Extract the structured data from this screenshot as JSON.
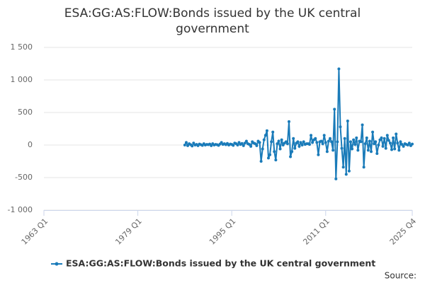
{
  "chart_data": {
    "type": "line",
    "title": "ESA:GG:AS:FLOW:Bonds issued by the UK central government",
    "source": "Source:",
    "x": [
      "1987 Q1",
      "1987 Q2",
      "1987 Q3",
      "1987 Q4",
      "1988 Q1",
      "1988 Q2",
      "1988 Q3",
      "1988 Q4",
      "1989 Q1",
      "1989 Q2",
      "1989 Q3",
      "1989 Q4",
      "1990 Q1",
      "1990 Q2",
      "1990 Q3",
      "1990 Q4",
      "1991 Q1",
      "1991 Q2",
      "1991 Q3",
      "1991 Q4",
      "1992 Q1",
      "1992 Q2",
      "1992 Q3",
      "1992 Q4",
      "1993 Q1",
      "1993 Q2",
      "1993 Q3",
      "1993 Q4",
      "1994 Q1",
      "1994 Q2",
      "1994 Q3",
      "1994 Q4",
      "1995 Q1",
      "1995 Q2",
      "1995 Q3",
      "1995 Q4",
      "1996 Q1",
      "1996 Q2",
      "1996 Q3",
      "1996 Q4",
      "1997 Q1",
      "1997 Q2",
      "1997 Q3",
      "1997 Q4",
      "1998 Q1",
      "1998 Q2",
      "1998 Q3",
      "1998 Q4",
      "1999 Q1",
      "1999 Q2",
      "1999 Q3",
      "1999 Q4",
      "2000 Q1",
      "2000 Q2",
      "2000 Q3",
      "2000 Q4",
      "2001 Q1",
      "2001 Q2",
      "2001 Q3",
      "2001 Q4",
      "2002 Q1",
      "2002 Q2",
      "2002 Q3",
      "2002 Q4",
      "2003 Q1",
      "2003 Q2",
      "2003 Q3",
      "2003 Q4",
      "2004 Q1",
      "2004 Q2",
      "2004 Q3",
      "2004 Q4",
      "2005 Q1",
      "2005 Q2",
      "2005 Q3",
      "2005 Q4",
      "2006 Q1",
      "2006 Q2",
      "2006 Q3",
      "2006 Q4",
      "2007 Q1",
      "2007 Q2",
      "2007 Q3",
      "2007 Q4",
      "2008 Q1",
      "2008 Q2",
      "2008 Q3",
      "2008 Q4",
      "2009 Q1",
      "2009 Q2",
      "2009 Q3",
      "2009 Q4",
      "2010 Q1",
      "2010 Q2",
      "2010 Q3",
      "2010 Q4",
      "2011 Q1",
      "2011 Q2",
      "2011 Q3",
      "2011 Q4",
      "2012 Q1",
      "2012 Q2",
      "2012 Q3",
      "2012 Q4",
      "2013 Q1",
      "2013 Q2",
      "2013 Q3",
      "2013 Q4",
      "2014 Q1",
      "2014 Q2",
      "2014 Q3",
      "2014 Q4",
      "2015 Q1",
      "2015 Q2",
      "2015 Q3",
      "2015 Q4",
      "2016 Q1",
      "2016 Q2",
      "2016 Q3",
      "2016 Q4",
      "2017 Q1",
      "2017 Q2",
      "2017 Q3",
      "2017 Q4",
      "2018 Q1",
      "2018 Q2",
      "2018 Q3",
      "2018 Q4",
      "2019 Q1",
      "2019 Q2",
      "2019 Q3",
      "2019 Q4",
      "2020 Q1",
      "2020 Q2",
      "2020 Q3",
      "2020 Q4",
      "2021 Q1",
      "2021 Q2",
      "2021 Q3",
      "2021 Q4",
      "2022 Q1",
      "2022 Q2",
      "2022 Q3",
      "2022 Q4",
      "2023 Q1",
      "2023 Q2",
      "2023 Q3",
      "2023 Q4",
      "2024 Q1",
      "2024 Q2",
      "2024 Q3",
      "2024 Q4",
      "2025 Q1",
      "2025 Q2",
      "2025 Q3",
      "2025 Q4"
    ],
    "series": [
      {
        "name": "ESA:GG:AS:FLOW:Bonds issued by the UK central government",
        "color": "#1a7bb9",
        "values": [
          0,
          40,
          -10,
          20,
          5,
          -15,
          30,
          0,
          10,
          -10,
          15,
          5,
          -5,
          20,
          0,
          10,
          5,
          15,
          -10,
          20,
          0,
          10,
          5,
          -5,
          15,
          40,
          10,
          20,
          5,
          25,
          0,
          15,
          10,
          -5,
          30,
          20,
          0,
          40,
          10,
          25,
          -10,
          30,
          60,
          20,
          10,
          -20,
          50,
          30,
          20,
          -10,
          60,
          40,
          -250,
          -60,
          80,
          150,
          220,
          -200,
          -150,
          50,
          200,
          -100,
          -230,
          20,
          60,
          -60,
          80,
          0,
          30,
          50,
          20,
          360,
          -180,
          -100,
          100,
          -50,
          30,
          50,
          -20,
          40,
          0,
          50,
          10,
          20,
          20,
          10,
          150,
          40,
          80,
          100,
          40,
          -150,
          50,
          60,
          20,
          150,
          40,
          -100,
          60,
          100,
          50,
          -80,
          550,
          -520,
          50,
          1170,
          280,
          -50,
          -340,
          100,
          -450,
          370,
          -400,
          50,
          -60,
          80,
          10,
          110,
          -80,
          60,
          50,
          310,
          -340,
          20,
          110,
          -80,
          60,
          -100,
          200,
          20,
          50,
          -130,
          0,
          80,
          110,
          -20,
          100,
          -50,
          150,
          70,
          30,
          -70,
          110,
          -60,
          170,
          30,
          -80,
          50,
          10,
          -20,
          20,
          10,
          0,
          30,
          -10,
          15
        ]
      }
    ],
    "xlim": [
      "1963 Q1",
      "2025 Q4"
    ],
    "xticks": [
      "1963 Q1",
      "1979 Q1",
      "1995 Q1",
      "2011 Q1",
      "2025 Q4"
    ],
    "ylim": [
      -1000,
      1500
    ],
    "yticks": [
      {
        "value": -1000,
        "label": "-1 000"
      },
      -500,
      0,
      500,
      {
        "value": 1000,
        "label": "1 000"
      },
      {
        "value": 1500,
        "label": "1 500"
      }
    ],
    "grid": true
  }
}
